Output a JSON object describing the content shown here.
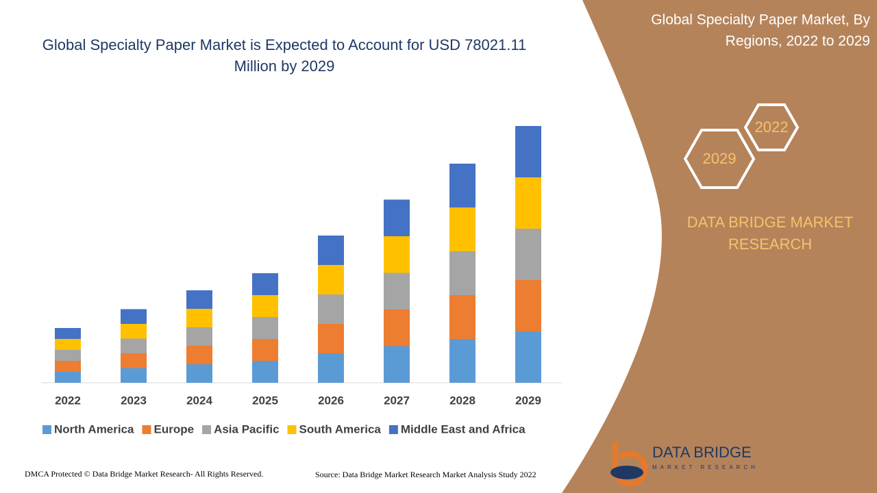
{
  "chart_data": {
    "type": "bar",
    "stacked": true,
    "title": "Global Specialty Paper Market is Expected to Account for USD 78021.11 Million by 2029",
    "categories": [
      "2022",
      "2023",
      "2024",
      "2025",
      "2026",
      "2027",
      "2028",
      "2029"
    ],
    "series": [
      {
        "name": "North America",
        "color": "#5b9bd5",
        "values": [
          3.2,
          4.3,
          5.4,
          6.4,
          8.6,
          10.7,
          12.8,
          15
        ]
      },
      {
        "name": "Europe",
        "color": "#ed7d31",
        "values": [
          3.2,
          4.3,
          5.4,
          6.4,
          8.6,
          10.7,
          12.8,
          15
        ]
      },
      {
        "name": "Asia Pacific",
        "color": "#a5a5a5",
        "values": [
          3.2,
          4.3,
          5.4,
          6.4,
          8.6,
          10.7,
          12.8,
          15
        ]
      },
      {
        "name": "South America",
        "color": "#ffc000",
        "values": [
          3.2,
          4.3,
          5.4,
          6.4,
          8.6,
          10.7,
          12.8,
          15
        ]
      },
      {
        "name": "Middle East and Africa",
        "color": "#4472c4",
        "values": [
          3.2,
          4.3,
          5.4,
          6.4,
          8.6,
          10.7,
          12.8,
          15
        ]
      }
    ],
    "legend": "bottom"
  },
  "panel": {
    "title": "Global Specialty Paper Market, By Regions, 2022 to 2029",
    "hex_start": "2022",
    "hex_end": "2029",
    "brand": "DATA BRIDGE MARKET RESEARCH"
  },
  "logo": {
    "name": "DATA BRIDGE",
    "tagline": "MARKET RESEARCH"
  },
  "footer": {
    "copyright": "DMCA Protected © Data Bridge Market Research- All Rights Reserved.",
    "source": "Source: Data Bridge Market Research Market Analysis Study 2022"
  }
}
